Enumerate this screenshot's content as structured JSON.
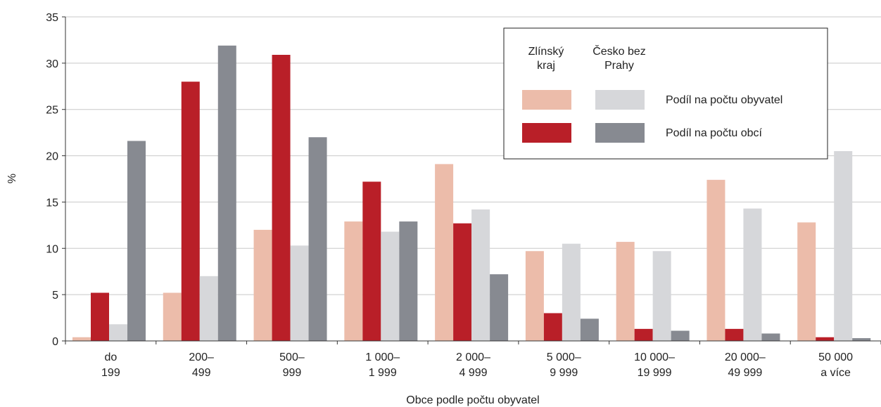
{
  "chart_data": {
    "type": "bar",
    "xlabel": "Obce podle počtu obyvatel",
    "ylabel": "%",
    "ylim": [
      0,
      35
    ],
    "yticks": [
      0,
      5,
      10,
      15,
      20,
      25,
      30,
      35
    ],
    "grid": true,
    "legend_position": "top-right",
    "categories": [
      [
        "do",
        "199"
      ],
      [
        "200–",
        "499"
      ],
      [
        "500–",
        "999"
      ],
      [
        "1 000–",
        "1 999"
      ],
      [
        "2 000–",
        "4 999"
      ],
      [
        "5 000–",
        "9 999"
      ],
      [
        "10 000–",
        "19 999"
      ],
      [
        "20 000–",
        "49 999"
      ],
      [
        "50 000",
        "a více"
      ]
    ],
    "series": [
      {
        "region": "Zlínský kraj",
        "measure": "Podíl na počtu obyvatel",
        "color": "#ecbcaa",
        "values": [
          0.4,
          5.2,
          12.0,
          12.9,
          19.1,
          9.7,
          10.7,
          17.4,
          12.8
        ]
      },
      {
        "region": "Zlínský kraj",
        "measure": "Podíl na počtu obcí",
        "color": "#b91f28",
        "values": [
          5.2,
          28.0,
          30.9,
          17.2,
          12.7,
          3.0,
          1.3,
          1.3,
          0.4
        ]
      },
      {
        "region": "Česko bez Prahy",
        "measure": "Podíl na počtu obyvatel",
        "color": "#d6d7da",
        "values": [
          1.8,
          7.0,
          10.3,
          11.8,
          14.2,
          10.5,
          9.7,
          14.3,
          20.5
        ]
      },
      {
        "region": "Česko bez Prahy",
        "measure": "Podíl na počtu obcí",
        "color": "#878a91",
        "values": [
          21.6,
          31.9,
          22.0,
          12.9,
          7.2,
          2.4,
          1.1,
          0.8,
          0.3
        ]
      }
    ],
    "legend": {
      "col1_line1": "Zlínský",
      "col1_line2": "kraj",
      "col2_line1": "Česko bez",
      "col2_line2": "Prahy",
      "row1_label": "Podíl na počtu obyvatel",
      "row2_label": "Podíl na počtu obcí"
    }
  }
}
